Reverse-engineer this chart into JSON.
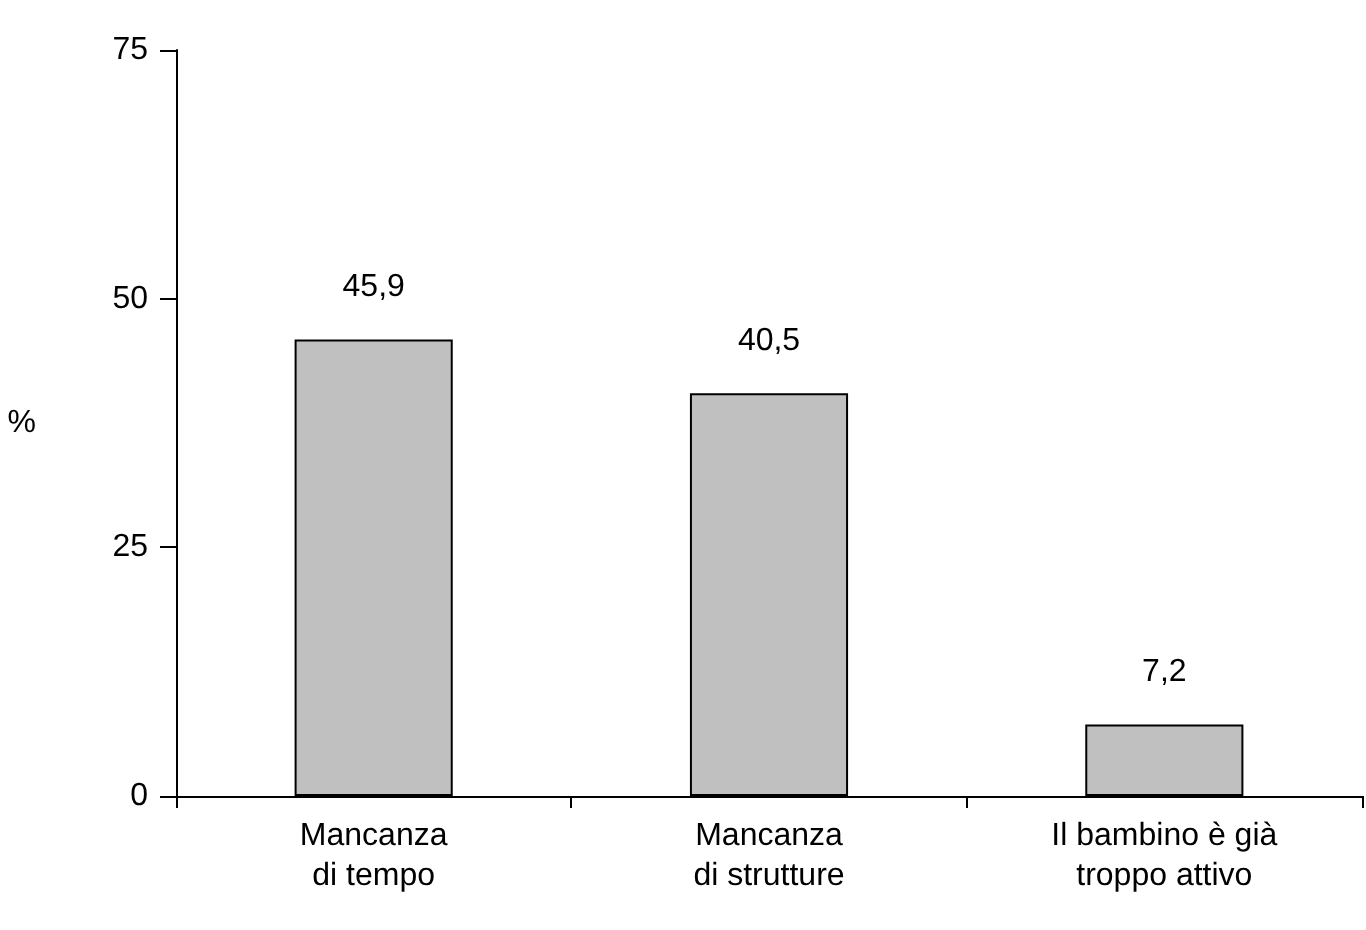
{
  "chart_data": {
    "type": "bar",
    "ylabel": "%",
    "categories": [
      "Mancanza\ndi tempo",
      "Mancanza\ndi strutture",
      "Il bambino è già\ntroppo attivo"
    ],
    "values": [
      45.9,
      40.5,
      7.2
    ],
    "value_labels": [
      "45,9",
      "40,5",
      "7,2"
    ],
    "color": "#c0c0c0",
    "ylim": [
      0,
      75
    ],
    "yticks": [
      0,
      25,
      50,
      75
    ],
    "grid": false
  }
}
